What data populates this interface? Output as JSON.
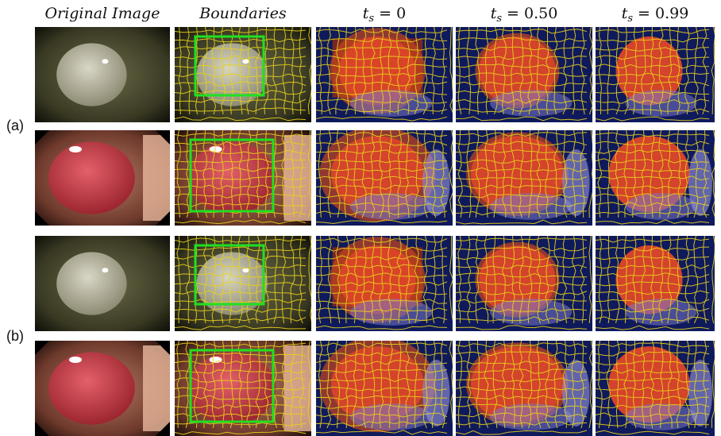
{
  "headers": {
    "original": "Original Image",
    "boundaries": "Boundaries",
    "ts0": {
      "var": "t",
      "sub": "s",
      "value": "= 0"
    },
    "ts050": {
      "var": "t",
      "sub": "s",
      "value": "= 0.50"
    },
    "ts099": {
      "var": "t",
      "sub": "s",
      "value": "= 0.99"
    }
  },
  "row_labels": {
    "a": "(a)",
    "b": "(b)"
  },
  "rows": [
    {
      "image": "pale-polyp",
      "group": "a"
    },
    {
      "image": "red-polyp",
      "group": "a"
    },
    {
      "image": "pale-polyp",
      "group": "b"
    },
    {
      "image": "red-polyp",
      "group": "b"
    }
  ],
  "colors": {
    "superpixel_boundary": "#e8d21a",
    "bbox": "#20e020",
    "background_map": "#0f1a5c",
    "foreground_map": "#e0452a"
  }
}
